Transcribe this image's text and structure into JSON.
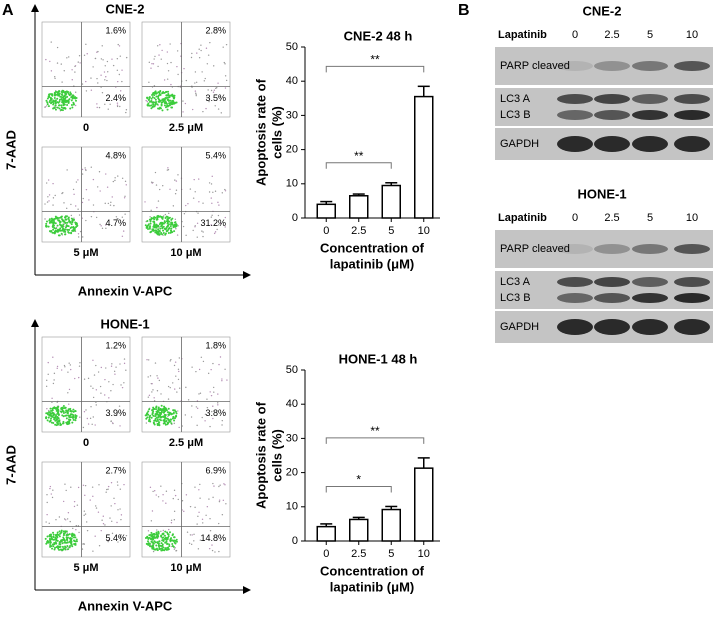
{
  "panels": {
    "a": "A",
    "b": "B"
  },
  "flow": [
    {
      "title": "CNE-2",
      "y_label": "7-AAD",
      "x_label": "Annexin V-APC",
      "plots": [
        {
          "label": "0",
          "upper_right": "1.6%",
          "lower_right": "2.4%"
        },
        {
          "label": "2.5 μM",
          "upper_right": "2.8%",
          "lower_right": "3.5%"
        },
        {
          "label": "5 μM",
          "upper_right": "4.8%",
          "lower_right": "4.7%"
        },
        {
          "label": "10 μM",
          "upper_right": "5.4%",
          "lower_right": "31.2%"
        }
      ]
    },
    {
      "title": "HONE-1",
      "y_label": "7-AAD",
      "x_label": "Annexin V-APC",
      "plots": [
        {
          "label": "0",
          "upper_right": "1.2%",
          "lower_right": "3.9%"
        },
        {
          "label": "2.5 μM",
          "upper_right": "1.8%",
          "lower_right": "3.8%"
        },
        {
          "label": "5 μM",
          "upper_right": "2.7%",
          "lower_right": "5.4%"
        },
        {
          "label": "10 μM",
          "upper_right": "6.9%",
          "lower_right": "14.8%"
        }
      ]
    }
  ],
  "chart_data": [
    {
      "type": "bar",
      "title": "CNE-2 48 h",
      "ylabel": [
        "Apoptosis rate of",
        "cells (%)"
      ],
      "xlabel": [
        "Concentration of",
        "lapatinib (μM)"
      ],
      "categories": [
        "0",
        "2.5",
        "5",
        "10"
      ],
      "values": [
        4,
        6.5,
        9.5,
        35.5
      ],
      "errors": [
        0.8,
        0.5,
        0.8,
        3
      ],
      "color": "#ffffff",
      "edge_color": "#000000",
      "ylim": [
        0,
        50
      ],
      "yticks": [
        0,
        10,
        20,
        30,
        40,
        50
      ],
      "annotations": [
        {
          "text": "**",
          "between": [
            "0",
            "5"
          ]
        },
        {
          "text": "**",
          "between": [
            "0",
            "10"
          ]
        }
      ]
    },
    {
      "type": "bar",
      "title": "HONE-1 48 h",
      "ylabel": [
        "Apoptosis rate of",
        "cells (%)"
      ],
      "xlabel": [
        "Concentration of",
        "lapatinib (μM)"
      ],
      "categories": [
        "0",
        "2.5",
        "5",
        "10"
      ],
      "values": [
        4.2,
        6.3,
        9.2,
        21.3
      ],
      "errors": [
        0.8,
        0.6,
        0.9,
        3
      ],
      "color": "#ffffff",
      "edge_color": "#000000",
      "ylim": [
        0,
        50
      ],
      "yticks": [
        0,
        10,
        20,
        30,
        40,
        50
      ],
      "annotations": [
        {
          "text": "*",
          "between": [
            "0",
            "5"
          ]
        },
        {
          "text": "**",
          "between": [
            "0",
            "10"
          ]
        }
      ]
    }
  ],
  "blots": [
    {
      "title": "CNE-2",
      "treatment": "Lapatinib",
      "lanes": [
        "0",
        "2.5",
        "5",
        "10"
      ],
      "rows": [
        {
          "labels": [
            "PARP cleaved"
          ]
        },
        {
          "labels": [
            "LC3 A",
            "LC3 B"
          ]
        },
        {
          "labels": [
            "GAPDH"
          ]
        }
      ]
    },
    {
      "title": "HONE-1",
      "treatment": "Lapatinib",
      "lanes": [
        "0",
        "2.5",
        "5",
        "10"
      ],
      "rows": [
        {
          "labels": [
            "PARP cleaved"
          ]
        },
        {
          "labels": [
            "LC3 A",
            "LC3 B"
          ]
        },
        {
          "labels": [
            "GAPDH"
          ]
        }
      ]
    }
  ]
}
